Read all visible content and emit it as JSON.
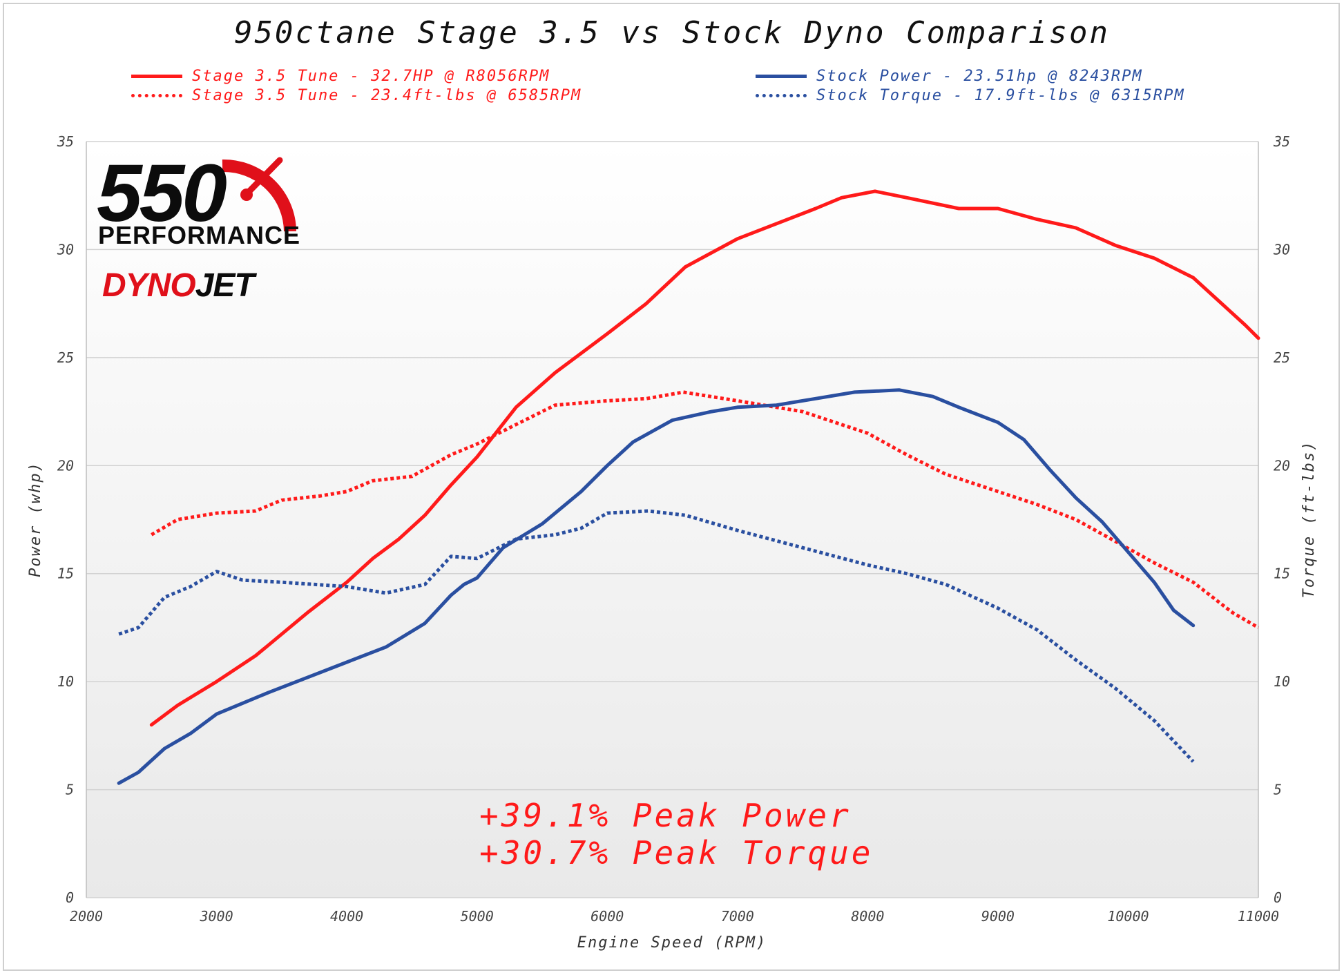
{
  "chart_data": {
    "type": "line",
    "title": "950ctane Stage 3.5 vs Stock Dyno Comparison",
    "xlabel": "Engine Speed (RPM)",
    "ylabel_left": "Power (whp)",
    "ylabel_right": "Torque (ft-lbs)",
    "xlim": [
      2000,
      11000
    ],
    "ylim": [
      0,
      35
    ],
    "x_ticks": [
      2000,
      3000,
      4000,
      5000,
      6000,
      7000,
      8000,
      9000,
      10000,
      11000
    ],
    "y_ticks": [
      0,
      5,
      10,
      15,
      20,
      25,
      30,
      35
    ],
    "grid": "horizontal",
    "legend_position": "top",
    "series": [
      {
        "name": "Stage 3.5 Tune - 32.7HP @ R8056RPM",
        "style": "solid",
        "color": "#ff1a1a",
        "x": [
          2500,
          2700,
          3000,
          3300,
          3400,
          3700,
          4000,
          4200,
          4400,
          4600,
          4800,
          5000,
          5300,
          5600,
          6000,
          6300,
          6600,
          7000,
          7300,
          7600,
          7800,
          8056,
          8300,
          8700,
          9000,
          9300,
          9600,
          9900,
          10200,
          10500,
          10700,
          10900,
          11000
        ],
        "y": [
          8.0,
          8.9,
          10.0,
          11.2,
          11.7,
          13.2,
          14.6,
          15.7,
          16.6,
          17.7,
          19.1,
          20.4,
          22.7,
          24.3,
          26.1,
          27.5,
          29.2,
          30.5,
          31.2,
          31.9,
          32.4,
          32.7,
          32.4,
          31.9,
          31.9,
          31.4,
          31.0,
          30.2,
          29.6,
          28.7,
          27.6,
          26.5,
          25.9
        ]
      },
      {
        "name": "Stage 3.5 Tune - 23.4ft-lbs @ 6585RPM",
        "style": "dotted",
        "color": "#ff1a1a",
        "x": [
          2500,
          2700,
          3000,
          3300,
          3500,
          3800,
          4000,
          4200,
          4500,
          4800,
          5000,
          5300,
          5600,
          6000,
          6300,
          6585,
          7000,
          7500,
          8000,
          8300,
          8600,
          9000,
          9300,
          9600,
          9900,
          10200,
          10500,
          10800,
          11000
        ],
        "y": [
          16.8,
          17.5,
          17.8,
          17.9,
          18.4,
          18.6,
          18.8,
          19.3,
          19.5,
          20.5,
          21.0,
          21.9,
          22.8,
          23.0,
          23.1,
          23.4,
          23.0,
          22.5,
          21.5,
          20.5,
          19.6,
          18.8,
          18.2,
          17.5,
          16.5,
          15.5,
          14.6,
          13.2,
          12.5
        ]
      },
      {
        "name": "Stock Power - 23.51hp @ 8243RPM",
        "style": "solid",
        "color": "#2a4fa0",
        "x": [
          2250,
          2400,
          2600,
          2800,
          3000,
          3200,
          3400,
          3700,
          4000,
          4300,
          4600,
          4800,
          4900,
          5000,
          5200,
          5500,
          5800,
          6000,
          6200,
          6500,
          6800,
          7000,
          7300,
          7600,
          7900,
          8243,
          8500,
          8700,
          9000,
          9200,
          9400,
          9600,
          9800,
          10000,
          10200,
          10350,
          10500
        ],
        "y": [
          5.3,
          5.8,
          6.9,
          7.6,
          8.5,
          9.0,
          9.5,
          10.2,
          10.9,
          11.6,
          12.7,
          14.0,
          14.5,
          14.8,
          16.2,
          17.3,
          18.8,
          20.0,
          21.1,
          22.1,
          22.5,
          22.7,
          22.8,
          23.1,
          23.4,
          23.5,
          23.2,
          22.7,
          22.0,
          21.2,
          19.8,
          18.5,
          17.4,
          16.0,
          14.6,
          13.3,
          12.6
        ]
      },
      {
        "name": "Stock Torque - 17.9ft-lbs @ 6315RPM",
        "style": "dotted",
        "color": "#2a4fa0",
        "x": [
          2250,
          2400,
          2600,
          2800,
          3000,
          3200,
          3500,
          4000,
          4300,
          4600,
          4800,
          5000,
          5300,
          5600,
          5800,
          6000,
          6315,
          6600,
          7000,
          7500,
          8000,
          8300,
          8600,
          9000,
          9300,
          9600,
          9900,
          10200,
          10500
        ],
        "y": [
          12.2,
          12.5,
          13.9,
          14.4,
          15.1,
          14.7,
          14.6,
          14.4,
          14.1,
          14.5,
          15.8,
          15.7,
          16.6,
          16.8,
          17.1,
          17.8,
          17.9,
          17.7,
          17.0,
          16.2,
          15.4,
          15.0,
          14.5,
          13.4,
          12.4,
          11.0,
          9.7,
          8.2,
          6.3
        ]
      }
    ],
    "annotations": [
      "+39.1% Peak Power",
      "+30.7% Peak Torque"
    ]
  },
  "logo": {
    "number": "550",
    "word": "PERFORMANCE",
    "dyno_red": "DYNO",
    "dyno_black": "JET"
  }
}
